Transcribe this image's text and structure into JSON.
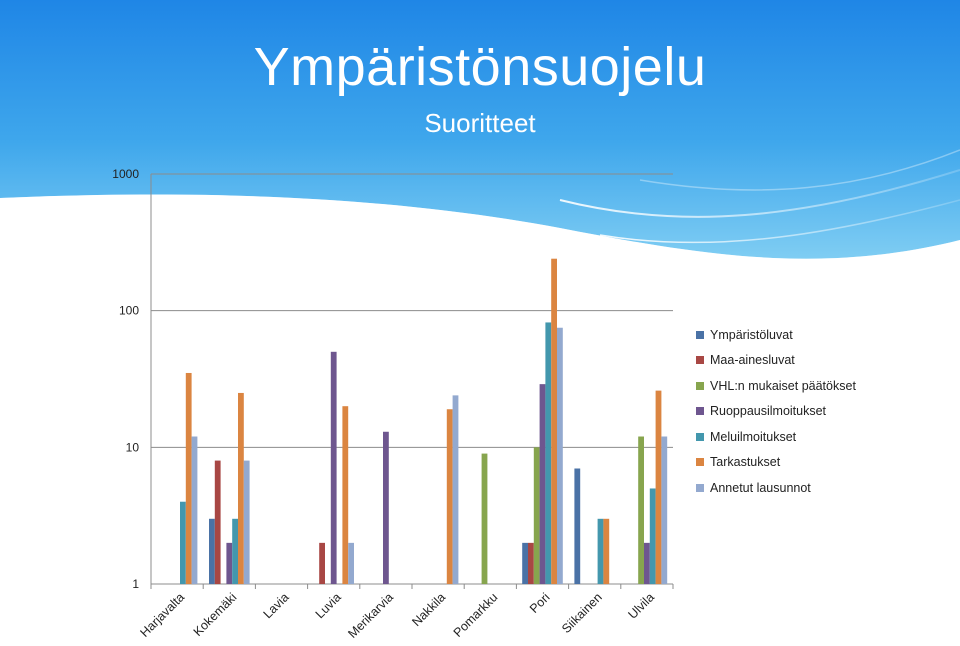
{
  "header": {
    "title": "Ympäristönsuojelu",
    "subtitle": "Suoritteet"
  },
  "chart_data": {
    "type": "bar",
    "scale": "log",
    "ylim": [
      1,
      1000
    ],
    "yticks": [
      "1",
      "10",
      "100",
      "1000"
    ],
    "yticks_values": [
      1,
      10,
      100,
      1000
    ],
    "grid": true,
    "legend_position": "right",
    "categories": [
      "Harjavalta",
      "Kokemäki",
      "Lavia",
      "Luvia",
      "Merikarvia",
      "Nakkila",
      "Pomarkku",
      "Pori",
      "Siikainen",
      "Ulvila"
    ],
    "series": [
      {
        "name": "Ympäristöluvat",
        "color": "#4a72a6",
        "values": [
          null,
          3,
          null,
          null,
          null,
          null,
          null,
          2,
          7,
          null
        ]
      },
      {
        "name": "Maa-ainesluvat",
        "color": "#a84744",
        "values": [
          null,
          8,
          null,
          2,
          null,
          null,
          null,
          2,
          null,
          null
        ]
      },
      {
        "name": "VHL:n mukaiset päätökset",
        "color": "#87a54e",
        "values": [
          null,
          null,
          null,
          null,
          null,
          null,
          9,
          10,
          null,
          12
        ]
      },
      {
        "name": "Ruoppausilmoitukset",
        "color": "#6e568f",
        "values": [
          null,
          2,
          null,
          50,
          13,
          null,
          null,
          29,
          null,
          2
        ]
      },
      {
        "name": "Meluilmoitukset",
        "color": "#4397ad",
        "values": [
          4,
          3,
          null,
          null,
          null,
          null,
          null,
          82,
          3,
          5
        ]
      },
      {
        "name": "Tarkastukset",
        "color": "#db8541",
        "values": [
          35,
          25,
          null,
          20,
          null,
          19,
          null,
          240,
          3,
          26
        ]
      },
      {
        "name": "Annetut lausunnot",
        "color": "#93a9cf",
        "values": [
          12,
          8,
          null,
          2,
          null,
          24,
          null,
          75,
          null,
          12
        ]
      }
    ]
  }
}
